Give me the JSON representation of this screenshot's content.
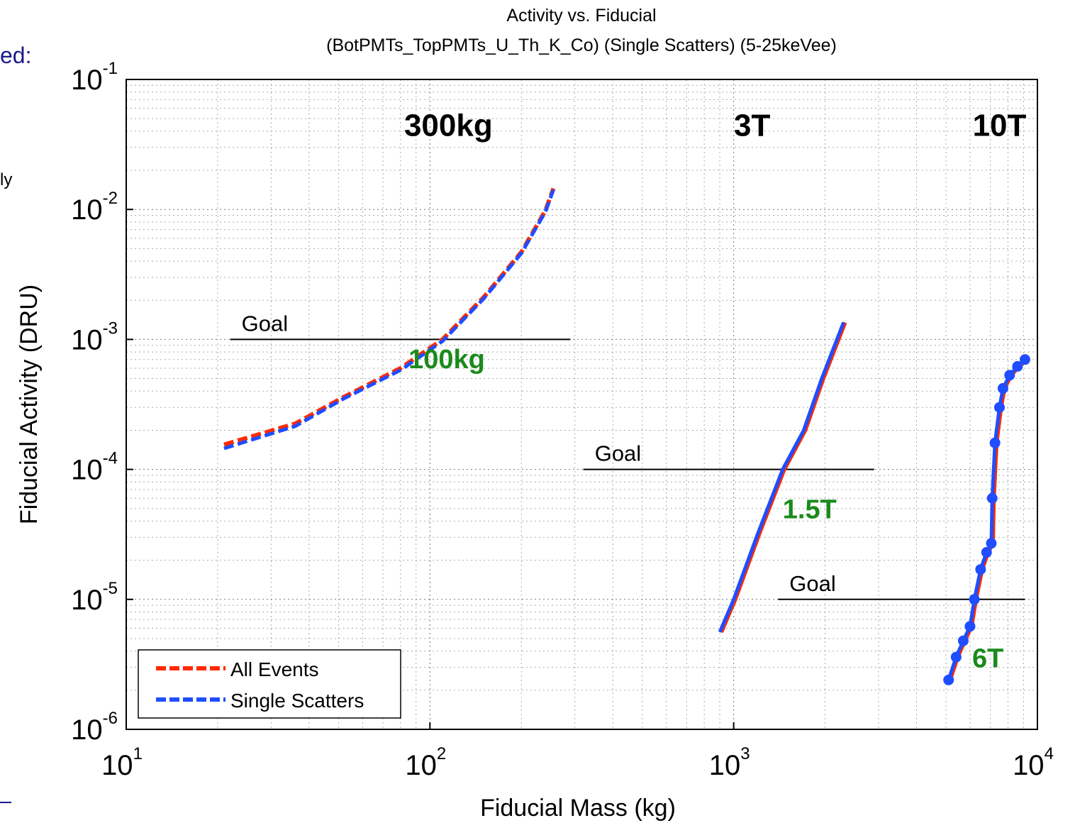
{
  "slide_fragments": {
    "heading_fragment": "ed:",
    "body_fragment": "ly"
  },
  "chart_data": {
    "type": "line",
    "title": "Activity vs. Fiducial",
    "subtitle": "(BotPMTs_TopPMTs_U_Th_K_Co) (Single Scatters) (5-25keVee)",
    "xlabel": "Fiducial Mass (kg)",
    "ylabel": "Fiducial Activity (DRU)",
    "x_scale": "log",
    "y_scale": "log",
    "xlim": [
      10,
      10000
    ],
    "ylim": [
      1e-06,
      0.1
    ],
    "grid": true,
    "legend_position": "bottom-left",
    "x_ticks": [
      {
        "base": "10",
        "exp": "1",
        "value": 10
      },
      {
        "base": "10",
        "exp": "2",
        "value": 100
      },
      {
        "base": "10",
        "exp": "3",
        "value": 1000
      },
      {
        "base": "10",
        "exp": "4",
        "value": 10000
      }
    ],
    "y_ticks": [
      {
        "base": "10",
        "exp": "-1",
        "value": 0.1
      },
      {
        "base": "10",
        "exp": "-2",
        "value": 0.01
      },
      {
        "base": "10",
        "exp": "-3",
        "value": 0.001
      },
      {
        "base": "10",
        "exp": "-4",
        "value": 0.0001
      },
      {
        "base": "10",
        "exp": "-5",
        "value": 1e-05
      },
      {
        "base": "10",
        "exp": "-6",
        "value": 1e-06
      }
    ],
    "series": [
      {
        "name": "All Events",
        "color": "#ff2a00",
        "style": "dashed",
        "curves": [
          [
            [
              21,
              0.000155
            ],
            [
              36,
              0.000225
            ],
            [
              52,
              0.00036
            ],
            [
              80,
              0.0006
            ],
            [
              110,
              0.001
            ],
            [
              150,
              0.0021
            ],
            [
              200,
              0.0047
            ],
            [
              240,
              0.0098
            ],
            [
              255,
              0.0145
            ]
          ],
          [
            [
              900,
              5.6e-06
            ],
            [
              1000,
              1e-05
            ],
            [
              1200,
              3.2e-05
            ],
            [
              1450,
              0.0001
            ],
            [
              1700,
              0.0002
            ],
            [
              1950,
              0.0005
            ],
            [
              2300,
              0.00135
            ]
          ],
          [
            [
              5100,
              2.4e-06
            ],
            [
              5400,
              3.6e-06
            ],
            [
              5700,
              4.8e-06
            ],
            [
              6000,
              6.2e-06
            ],
            [
              6200,
              1e-05
            ],
            [
              6500,
              1.7e-05
            ],
            [
              6800,
              2.3e-05
            ],
            [
              7050,
              2.7e-05
            ],
            [
              7100,
              6e-05
            ],
            [
              7250,
              0.00016
            ],
            [
              7500,
              0.0003
            ],
            [
              7700,
              0.00042
            ],
            [
              8100,
              0.00053
            ],
            [
              8600,
              0.00062
            ],
            [
              9100,
              0.0007
            ]
          ]
        ]
      },
      {
        "name": "Single Scatters",
        "color": "#1f4dff",
        "style": "dashed",
        "curves": [
          [
            [
              21,
              0.000145
            ],
            [
              36,
              0.000215
            ],
            [
              52,
              0.00035
            ],
            [
              80,
              0.00058
            ],
            [
              110,
              0.00097
            ],
            [
              150,
              0.00205
            ],
            [
              200,
              0.0046
            ],
            [
              240,
              0.0096
            ],
            [
              255,
              0.0142
            ]
          ],
          [
            [
              900,
              5.6e-06
            ],
            [
              1000,
              1e-05
            ],
            [
              1200,
              3.2e-05
            ],
            [
              1450,
              0.0001
            ],
            [
              1700,
              0.0002
            ],
            [
              1950,
              0.0005
            ],
            [
              2300,
              0.00135
            ]
          ],
          [
            [
              5100,
              2.4e-06
            ],
            [
              5400,
              3.6e-06
            ],
            [
              5700,
              4.8e-06
            ],
            [
              6000,
              6.2e-06
            ],
            [
              6200,
              1e-05
            ],
            [
              6500,
              1.7e-05
            ],
            [
              6800,
              2.3e-05
            ],
            [
              7050,
              2.7e-05
            ],
            [
              7100,
              6e-05
            ],
            [
              7250,
              0.00016
            ],
            [
              7500,
              0.0003
            ],
            [
              7700,
              0.00042
            ],
            [
              8100,
              0.00053
            ],
            [
              8600,
              0.00062
            ],
            [
              9100,
              0.0007
            ]
          ]
        ],
        "marker_curve_index": 2
      }
    ],
    "goal_lines": [
      {
        "label": "Goal",
        "y": 0.001,
        "x_range": [
          22,
          290
        ]
      },
      {
        "label": "Goal",
        "y": 0.0001,
        "x_range": [
          320,
          2900
        ]
      },
      {
        "label": "Goal",
        "y": 1e-05,
        "x_range": [
          1400,
          9100
        ]
      }
    ],
    "region_labels": [
      {
        "text": "300kg",
        "x": 115,
        "y": 0.045
      },
      {
        "text": "3T",
        "x": 1150,
        "y": 0.045
      },
      {
        "text": "10T",
        "x": 7500,
        "y": 0.045
      }
    ],
    "marker_labels": [
      {
        "text": "100kg",
        "x": 85,
        "y": 0.0006
      },
      {
        "text": "1.5T",
        "x": 1450,
        "y": 4.2e-05
      },
      {
        "text": "6T",
        "x": 6100,
        "y": 3e-06
      }
    ]
  }
}
